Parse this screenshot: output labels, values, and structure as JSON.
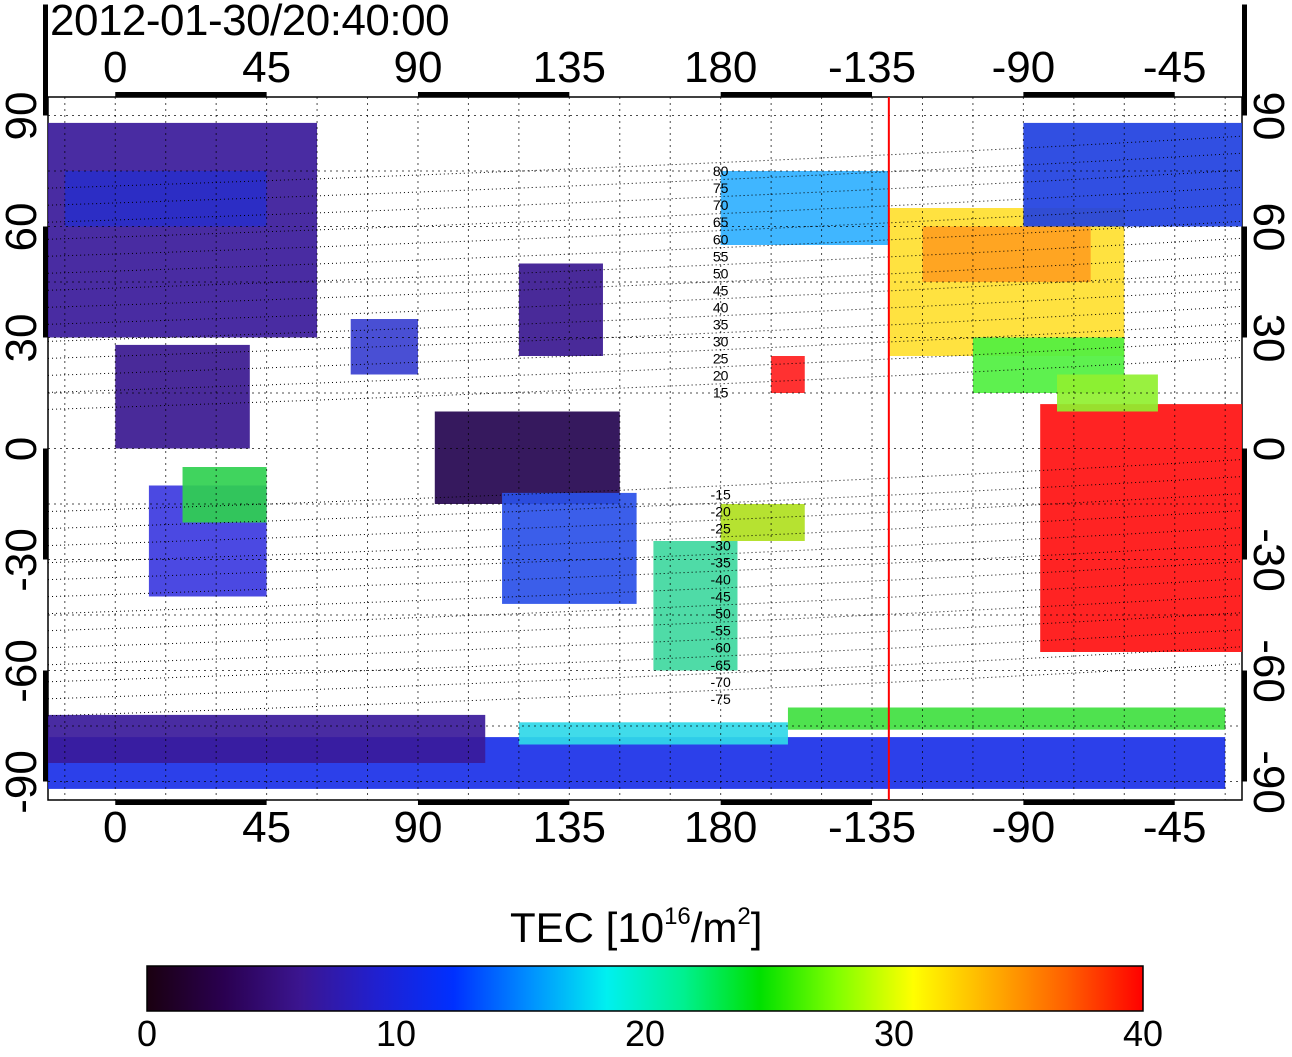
{
  "timestamp": "2012-01-30/20:40:00",
  "map": {
    "top_ticks": [
      "0",
      "45",
      "90",
      "135",
      "180",
      "-135",
      "-90",
      "-45"
    ],
    "bottom_ticks": [
      "0",
      "45",
      "90",
      "135",
      "180",
      "-135",
      "-90",
      "-45"
    ],
    "left_ticks": [
      "90",
      "60",
      "30",
      "0",
      "-30",
      "-60",
      "-90"
    ],
    "right_ticks": [
      "90",
      "60",
      "30",
      "0",
      "-30",
      "-60",
      "-90"
    ],
    "lon_ticks": [
      0,
      45,
      90,
      135,
      180,
      225,
      270,
      315
    ],
    "lat_ticks": [
      90,
      60,
      30,
      0,
      -30,
      -60,
      -90
    ],
    "lon_range": [
      -20,
      335
    ],
    "lat_range": [
      -95,
      95
    ],
    "terminator_longitude": -130,
    "terminator_color": "#ff0000",
    "contour_labels": [
      "80",
      "75",
      "70",
      "65",
      "60",
      "55",
      "50",
      "45",
      "40",
      "35",
      "30",
      "25",
      "20",
      "15",
      "-15",
      "-20",
      "-25",
      "-30",
      "-35",
      "-40",
      "-45",
      "-50",
      "-55",
      "-60",
      "-65",
      "-70",
      "-75"
    ]
  },
  "colorbar": {
    "title_main": "TEC  [10",
    "title_sup1": "16",
    "title_mid": "/m",
    "title_sup2": "2",
    "title_end": "]",
    "range": [
      0,
      40
    ],
    "ticks": [
      "0",
      "10",
      "20",
      "30",
      "40"
    ],
    "colors": [
      "#1a0010",
      "#2a0050",
      "#3b1590",
      "#2020d0",
      "#0030ff",
      "#0090ff",
      "#00f0f0",
      "#00f090",
      "#00e000",
      "#80ff00",
      "#ffff00",
      "#ffb000",
      "#ff6000",
      "#ff0000"
    ]
  },
  "regions": [
    {
      "name": "europe-asia-low",
      "color": "#3a1a9a",
      "lon": [
        -20,
        60
      ],
      "lat": [
        30,
        88
      ]
    },
    {
      "name": "arctic-europe",
      "color": "#2a2ec8",
      "lon": [
        -15,
        45
      ],
      "lat": [
        60,
        75
      ]
    },
    {
      "name": "africa-north",
      "color": "#3a1890",
      "lon": [
        0,
        40
      ],
      "lat": [
        0,
        28
      ]
    },
    {
      "name": "africa-south",
      "color": "#3c3ae0",
      "lon": [
        10,
        45
      ],
      "lat": [
        -40,
        -10
      ]
    },
    {
      "name": "africa-green",
      "color": "#30d050",
      "lon": [
        20,
        45
      ],
      "lat": [
        -20,
        -5
      ]
    },
    {
      "name": "asia-east",
      "color": "#3a1890",
      "lon": [
        120,
        145
      ],
      "lat": [
        25,
        50
      ]
    },
    {
      "name": "india",
      "color": "#3a40d0",
      "lon": [
        70,
        90
      ],
      "lat": [
        20,
        35
      ]
    },
    {
      "name": "indonesia",
      "color": "#250550",
      "lon": [
        95,
        150
      ],
      "lat": [
        -15,
        10
      ]
    },
    {
      "name": "australia",
      "color": "#2a50e8",
      "lon": [
        115,
        155
      ],
      "lat": [
        -42,
        -12
      ]
    },
    {
      "name": "nz-pacific",
      "color": "#40d8a0",
      "lon": [
        160,
        185
      ],
      "lat": [
        -60,
        -25
      ]
    },
    {
      "name": "pacific-yellow",
      "color": "#b0e020",
      "lon": [
        180,
        205
      ],
      "lat": [
        -25,
        -15
      ]
    },
    {
      "name": "n-america-west",
      "color": "#30b0ff",
      "lon": [
        180,
        230
      ],
      "lat": [
        55,
        75
      ]
    },
    {
      "name": "n-america-yellow",
      "color": "#ffe030",
      "lon": [
        230,
        300
      ],
      "lat": [
        25,
        65
      ]
    },
    {
      "name": "n-america-orange",
      "color": "#ffa020",
      "lon": [
        240,
        290
      ],
      "lat": [
        45,
        60
      ]
    },
    {
      "name": "greenland",
      "color": "#2040e0",
      "lon": [
        270,
        335
      ],
      "lat": [
        60,
        88
      ]
    },
    {
      "name": "central-america",
      "color": "#50f040",
      "lon": [
        255,
        300
      ],
      "lat": [
        15,
        30
      ]
    },
    {
      "name": "s-america",
      "color": "#ff1010",
      "lon": [
        275,
        335
      ],
      "lat": [
        -55,
        12
      ]
    },
    {
      "name": "caribbean-green",
      "color": "#90f030",
      "lon": [
        280,
        310
      ],
      "lat": [
        10,
        20
      ]
    },
    {
      "name": "pacific-red",
      "color": "#ff2020",
      "lon": [
        195,
        205
      ],
      "lat": [
        15,
        25
      ]
    },
    {
      "name": "antarctic-blue",
      "color": "#1a30e8",
      "lon": [
        -20,
        330
      ],
      "lat": [
        -92,
        -78
      ]
    },
    {
      "name": "antarctic-cyan",
      "color": "#30d8e8",
      "lon": [
        120,
        200
      ],
      "lat": [
        -80,
        -74
      ]
    },
    {
      "name": "antarctic-green",
      "color": "#40e040",
      "lon": [
        200,
        330
      ],
      "lat": [
        -76,
        -70
      ]
    },
    {
      "name": "antarctic-purple",
      "color": "#3a1a9a",
      "lon": [
        -20,
        110
      ],
      "lat": [
        -85,
        -72
      ]
    }
  ]
}
